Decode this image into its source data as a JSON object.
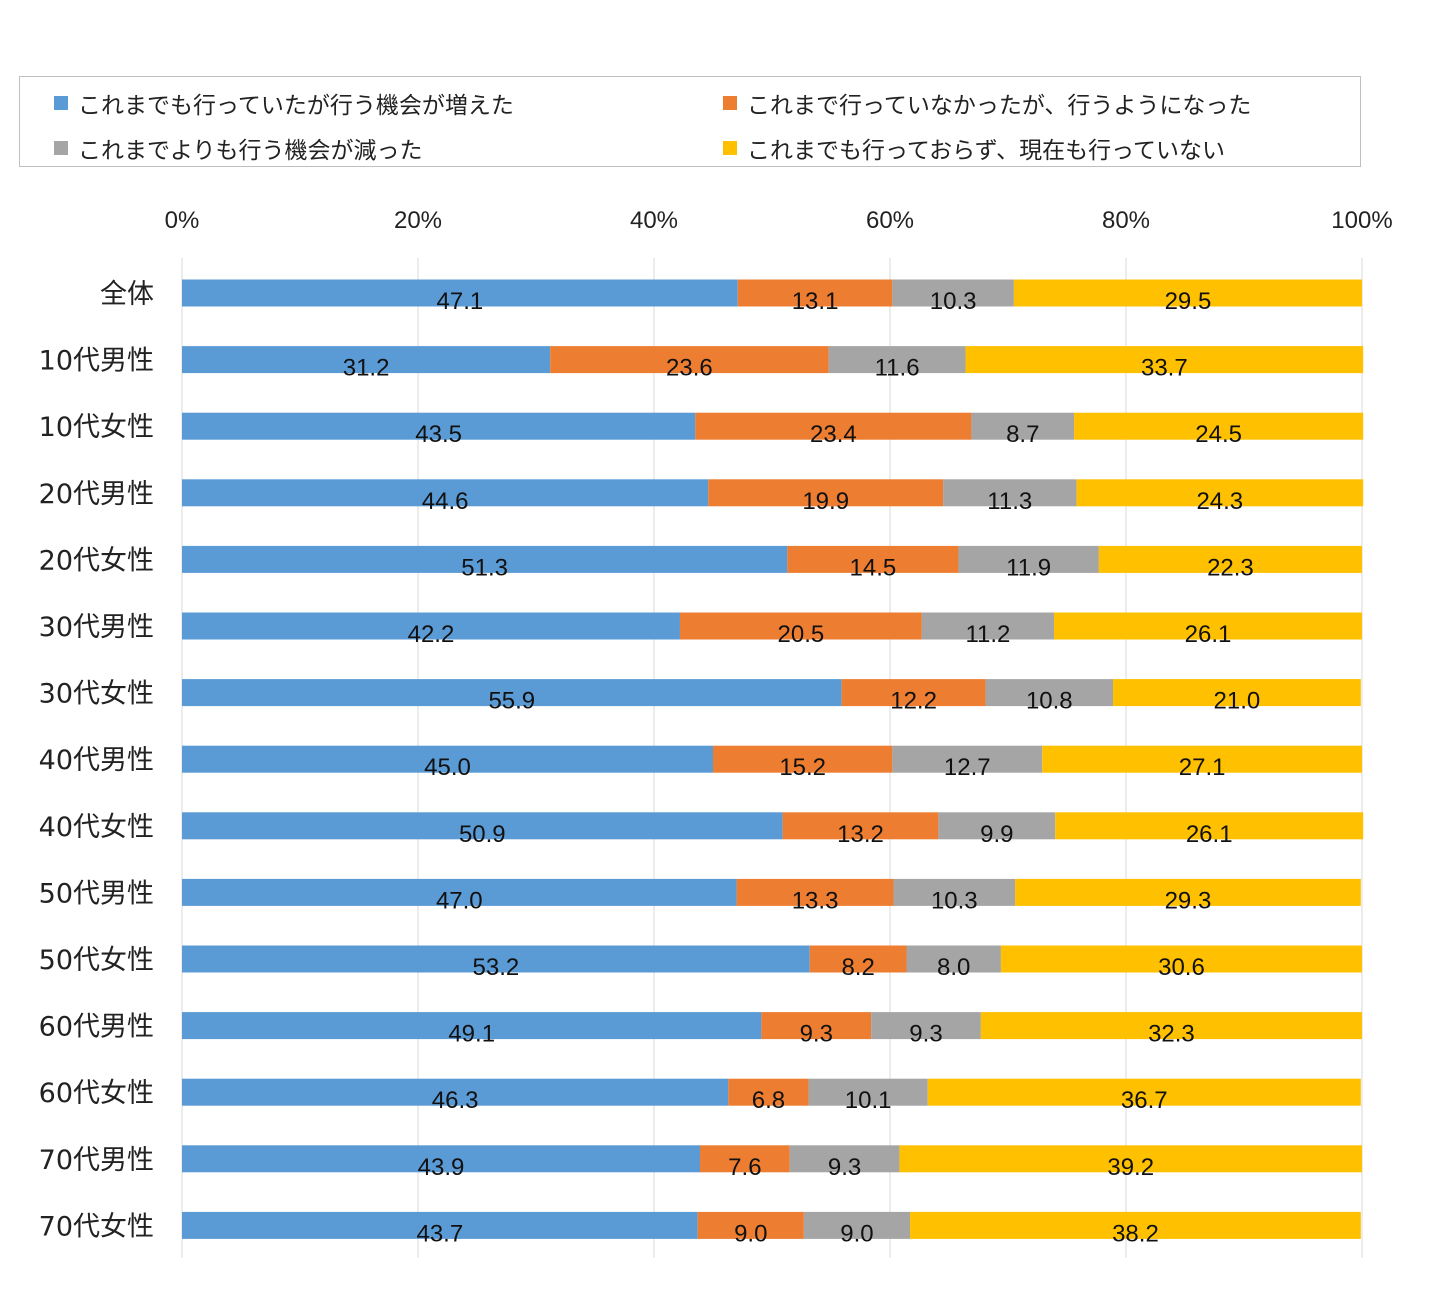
{
  "chart_data": {
    "type": "bar",
    "orientation": "horizontal",
    "stacked": true,
    "percent_axis": true,
    "xlim": [
      0,
      100
    ],
    "x_ticks": [
      "0%",
      "20%",
      "40%",
      "60%",
      "80%",
      "100%"
    ],
    "grid": true,
    "legend_position": "top",
    "categories": [
      "全体",
      "10代男性",
      "10代女性",
      "20代男性",
      "20代女性",
      "30代男性",
      "30代女性",
      "40代男性",
      "40代女性",
      "50代男性",
      "50代女性",
      "60代男性",
      "60代女性",
      "70代男性",
      "70代女性"
    ],
    "series": [
      {
        "name": "これまでも行っていたが行う機会が増えた",
        "color": "#5b9bd5",
        "values": [
          47.1,
          31.2,
          43.5,
          44.6,
          51.3,
          42.2,
          55.9,
          45.0,
          50.9,
          47.0,
          53.2,
          49.1,
          46.3,
          43.9,
          43.7
        ]
      },
      {
        "name": "これまで行っていなかったが、行うようになった",
        "color": "#ed7d31",
        "values": [
          13.1,
          23.6,
          23.4,
          19.9,
          14.5,
          20.5,
          12.2,
          15.2,
          13.2,
          13.3,
          8.2,
          9.3,
          6.8,
          7.6,
          9.0
        ]
      },
      {
        "name": "これまでよりも行う機会が減った",
        "color": "#a5a5a5",
        "values": [
          10.3,
          11.6,
          8.7,
          11.3,
          11.9,
          11.2,
          10.8,
          12.7,
          9.9,
          10.3,
          8.0,
          9.3,
          10.1,
          9.3,
          9.0
        ]
      },
      {
        "name": "これまでも行っておらず、現在も行っていない",
        "color": "#ffc000",
        "values": [
          29.5,
          33.7,
          24.5,
          24.3,
          22.3,
          26.1,
          21.0,
          27.1,
          26.1,
          29.3,
          30.6,
          32.3,
          36.7,
          39.2,
          38.2
        ]
      }
    ]
  }
}
